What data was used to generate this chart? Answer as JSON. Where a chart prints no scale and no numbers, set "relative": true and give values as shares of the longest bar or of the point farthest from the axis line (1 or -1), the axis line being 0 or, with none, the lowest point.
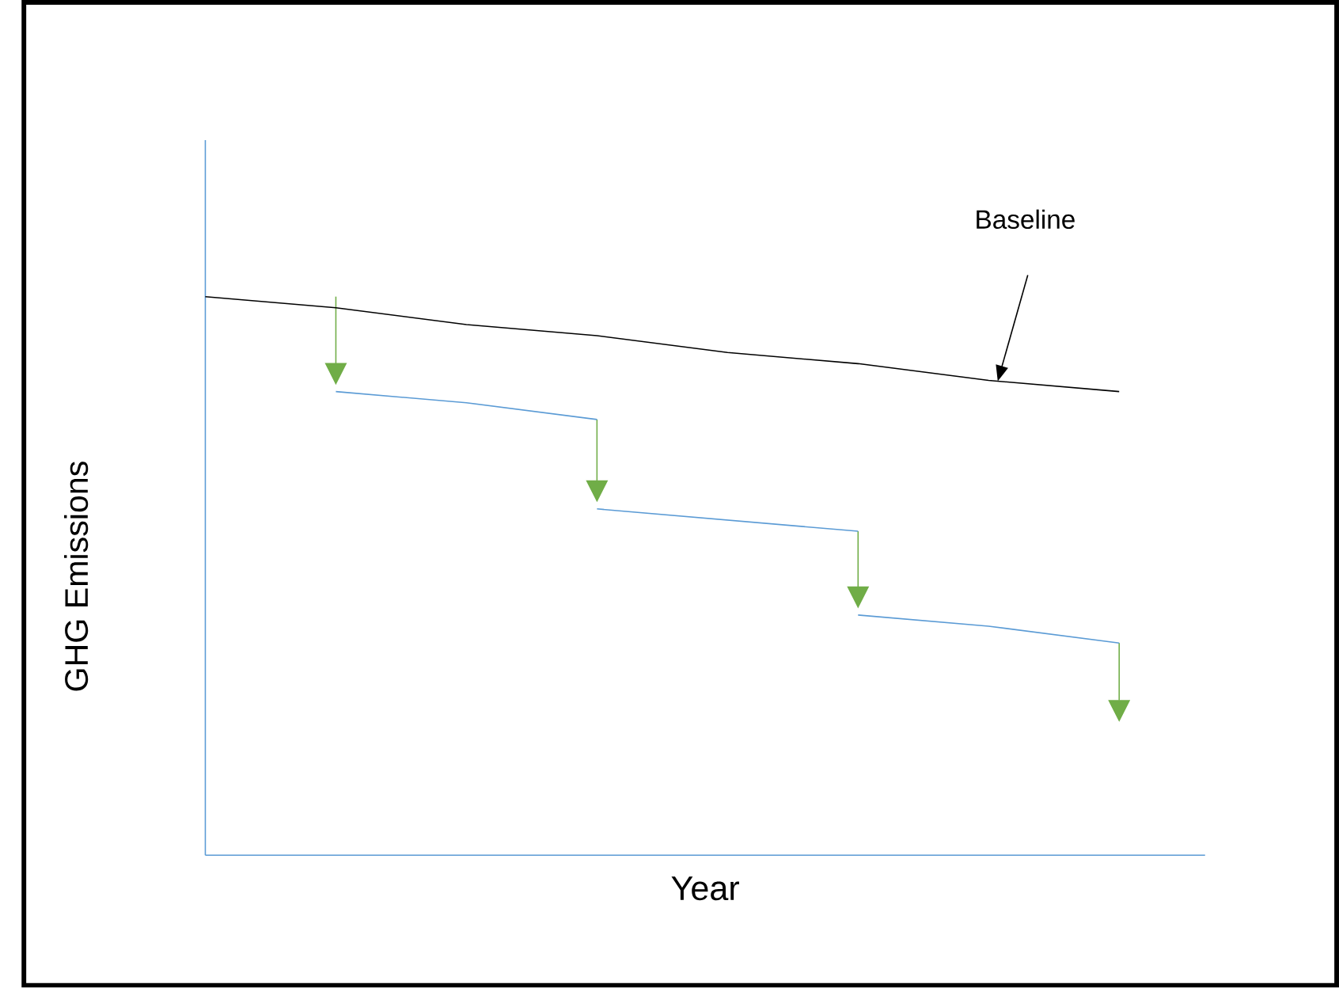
{
  "chart_data": {
    "type": "line",
    "relative": true,
    "xlabel": "Year",
    "ylabel": "GHG Emissions",
    "categories": [
      null,
      null,
      null,
      null,
      null,
      null,
      null,
      null
    ],
    "series": [
      {
        "color": "#000000",
        "values": [
          1.0,
          0.98,
          0.95,
          0.93,
          0.9,
          0.88,
          0.85,
          0.83
        ]
      },
      {
        "color": "#5b9bd5",
        "values": [
          null,
          0.83,
          0.81,
          0.78,
          null,
          null,
          null,
          null
        ]
      },
      {
        "color": "#5b9bd5",
        "values": [
          null,
          null,
          null,
          0.62,
          0.6,
          0.58,
          null,
          null
        ]
      },
      {
        "color": "#5b9bd5",
        "values": [
          null,
          null,
          null,
          null,
          null,
          0.43,
          0.41,
          0.38
        ]
      }
    ],
    "annotations": [
      "Baseline"
    ]
  }
}
